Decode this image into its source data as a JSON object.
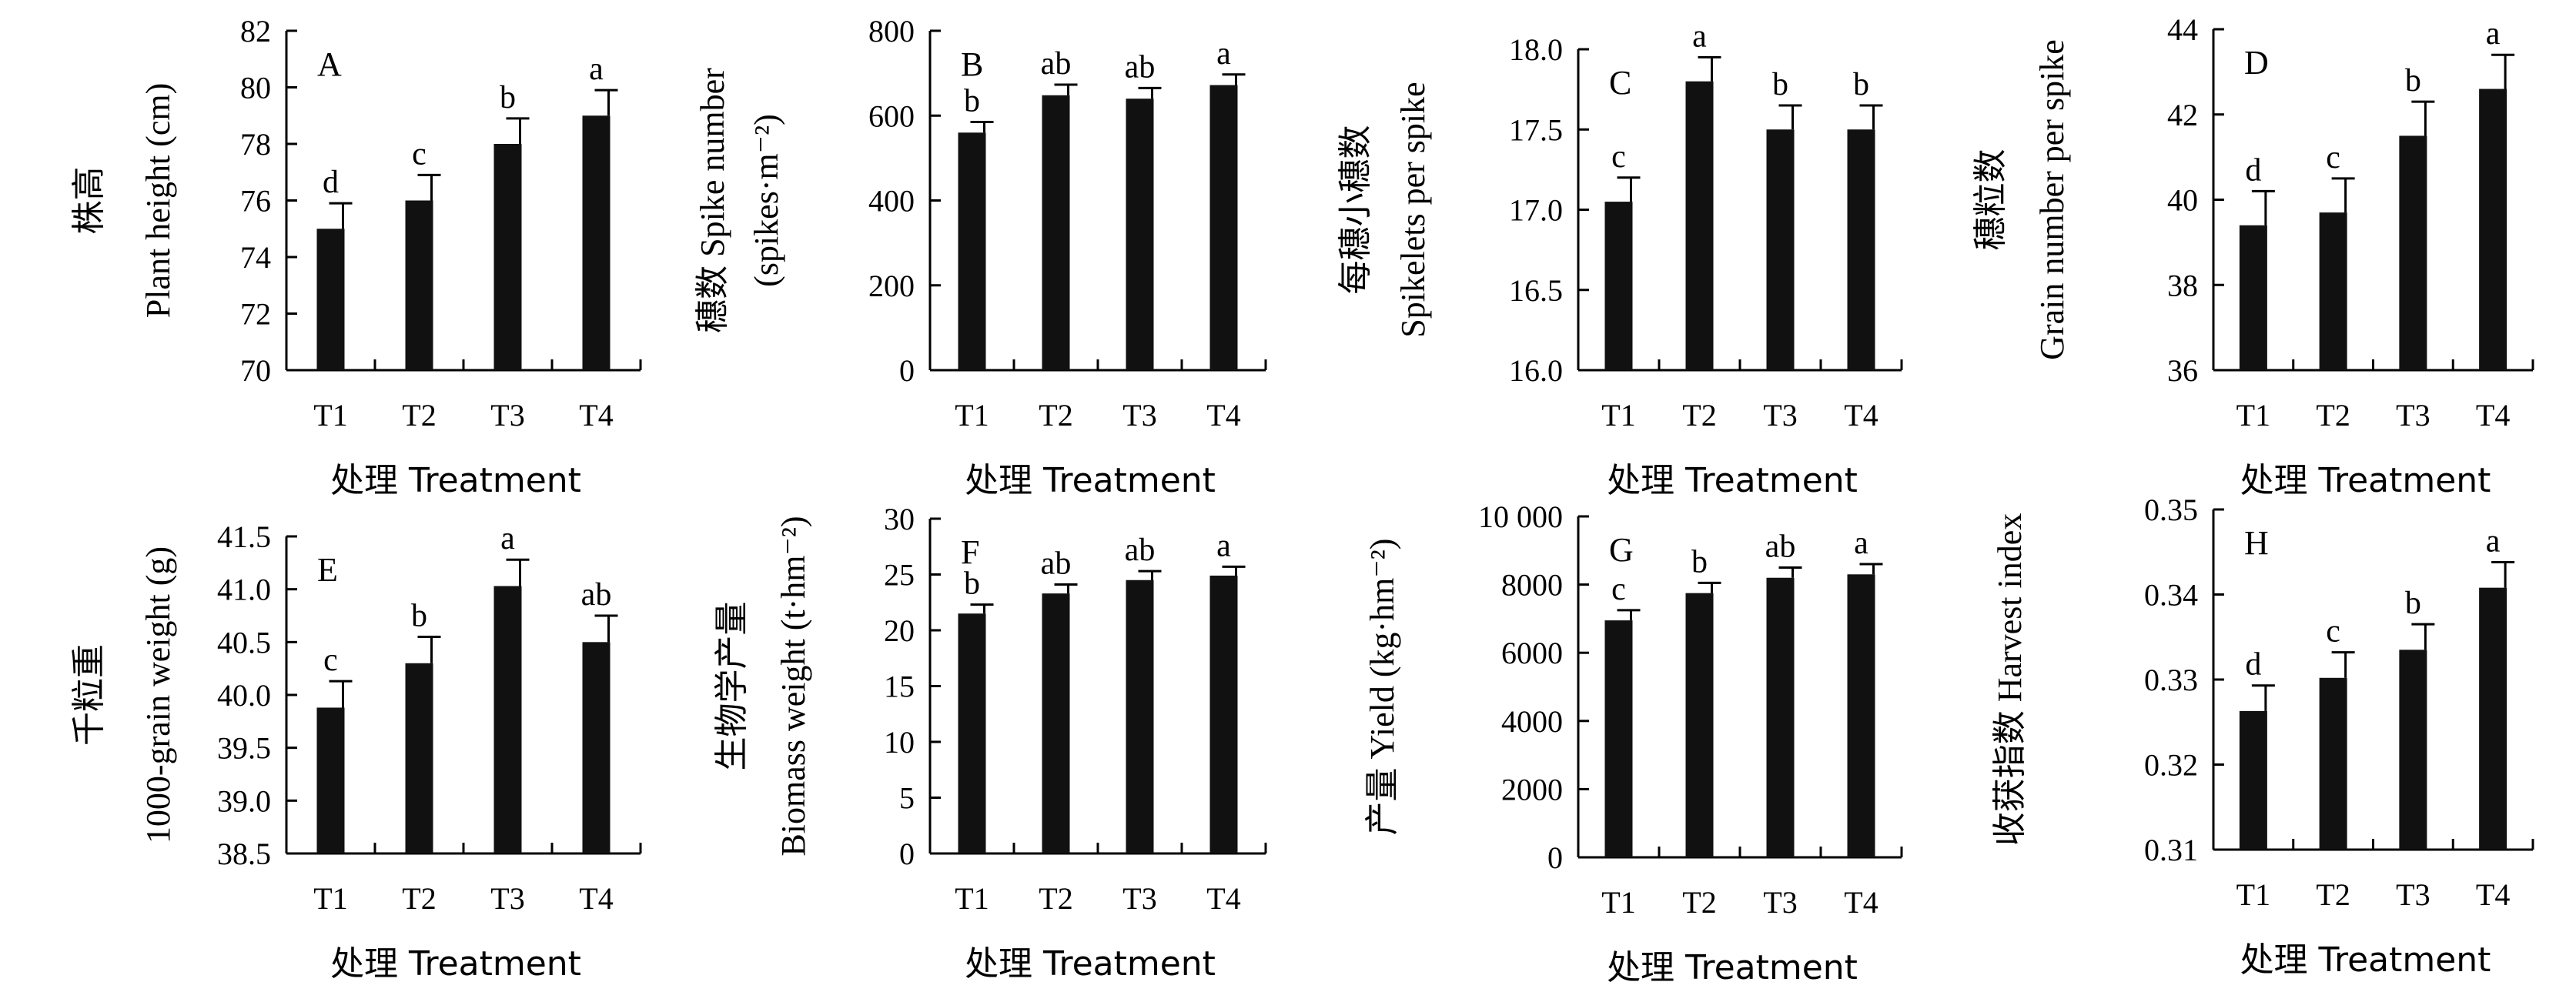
{
  "x_label": "处理 Treatment",
  "chart_data": [
    {
      "type": "bar",
      "panel": "A",
      "ylabel_zh": "株高",
      "ylabel_en": "Plant height (cm)",
      "categories": [
        "T1",
        "T2",
        "T3",
        "T4"
      ],
      "values": [
        75.0,
        76.0,
        78.0,
        79.0
      ],
      "errors": [
        0.9,
        0.9,
        0.9,
        0.9
      ],
      "significance": [
        "d",
        "c",
        "b",
        "a"
      ],
      "ylim": [
        70,
        82
      ],
      "yticks": [
        70,
        72,
        74,
        76,
        78,
        80,
        82
      ],
      "ytick_labels": [
        "70",
        "72",
        "74",
        "76",
        "78",
        "80",
        "82"
      ]
    },
    {
      "type": "bar",
      "panel": "B",
      "ylabel_zh": "穗数",
      "ylabel_en": "Spike number",
      "ylabel_unit": "(spikes·m⁻²)",
      "categories": [
        "T1",
        "T2",
        "T3",
        "T4"
      ],
      "values": [
        560,
        648,
        640,
        672
      ],
      "errors": [
        25,
        25,
        25,
        25
      ],
      "significance": [
        "b",
        "ab",
        "ab",
        "a"
      ],
      "ylim": [
        0,
        800
      ],
      "yticks": [
        0,
        200,
        400,
        600,
        800
      ],
      "ytick_labels": [
        "0",
        "200",
        "400",
        "600",
        "800"
      ]
    },
    {
      "type": "bar",
      "panel": "C",
      "ylabel_zh": "每穗小穗数",
      "ylabel_en": "Spikelets per spike",
      "categories": [
        "T1",
        "T2",
        "T3",
        "T4"
      ],
      "values": [
        17.05,
        17.8,
        17.5,
        17.5
      ],
      "errors": [
        0.15,
        0.15,
        0.15,
        0.15
      ],
      "significance": [
        "c",
        "a",
        "b",
        "b"
      ],
      "ylim": [
        16.0,
        18.0
      ],
      "yticks": [
        16.0,
        16.5,
        17.0,
        17.5,
        18.0
      ],
      "ytick_labels": [
        "16.0",
        "16.5",
        "17.0",
        "17.5",
        "18.0"
      ]
    },
    {
      "type": "bar",
      "panel": "D",
      "ylabel_zh": "穗粒数",
      "ylabel_en": "Grain number per spike",
      "categories": [
        "T1",
        "T2",
        "T3",
        "T4"
      ],
      "values": [
        39.4,
        39.7,
        41.5,
        42.6
      ],
      "errors": [
        0.8,
        0.8,
        0.8,
        0.8
      ],
      "significance": [
        "d",
        "c",
        "b",
        "a"
      ],
      "ylim": [
        36,
        44
      ],
      "yticks": [
        36,
        38,
        40,
        42,
        44
      ],
      "ytick_labels": [
        "36",
        "38",
        "40",
        "42",
        "44"
      ]
    },
    {
      "type": "bar",
      "panel": "E",
      "ylabel_zh": "千粒重",
      "ylabel_en": "1000-grain weight (g)",
      "categories": [
        "T1",
        "T2",
        "T3",
        "T4"
      ],
      "values": [
        39.88,
        40.3,
        41.03,
        40.5
      ],
      "errors": [
        0.25,
        0.25,
        0.25,
        0.25
      ],
      "significance": [
        "c",
        "b",
        "a",
        "ab"
      ],
      "ylim": [
        38.5,
        41.5
      ],
      "yticks": [
        38.5,
        39.0,
        39.5,
        40.0,
        40.5,
        41.0,
        41.5
      ],
      "ytick_labels": [
        "38.5",
        "39.0",
        "39.5",
        "40.0",
        "40.5",
        "41.0",
        "41.5"
      ]
    },
    {
      "type": "bar",
      "panel": "F",
      "ylabel_zh": "生物学产量",
      "ylabel_en": "Biomass weight (t·hm⁻²)",
      "categories": [
        "T1",
        "T2",
        "T3",
        "T4"
      ],
      "values": [
        21.5,
        23.3,
        24.5,
        24.9
      ],
      "errors": [
        0.8,
        0.8,
        0.8,
        0.8
      ],
      "significance": [
        "b",
        "ab",
        "ab",
        "a"
      ],
      "ylim": [
        0,
        30
      ],
      "yticks": [
        0,
        5,
        10,
        15,
        20,
        25,
        30
      ],
      "ytick_labels": [
        "0",
        "5",
        "10",
        "15",
        "20",
        "25",
        "30"
      ]
    },
    {
      "type": "bar",
      "panel": "G",
      "ylabel_zh": "产量",
      "ylabel_en": "Yield (kg·hm⁻²)",
      "categories": [
        "T1",
        "T2",
        "T3",
        "T4"
      ],
      "values": [
        6950,
        7750,
        8200,
        8300
      ],
      "errors": [
        300,
        300,
        300,
        300
      ],
      "significance": [
        "c",
        "b",
        "ab",
        "a"
      ],
      "ylim": [
        0,
        10000
      ],
      "yticks": [
        0,
        2000,
        4000,
        6000,
        8000,
        10000
      ],
      "ytick_labels": [
        "0",
        "2000",
        "4000",
        "6000",
        "8000",
        "10 000"
      ]
    },
    {
      "type": "bar",
      "panel": "H",
      "ylabel_zh": "收获指数",
      "ylabel_en": "Harvest index",
      "categories": [
        "T1",
        "T2",
        "T3",
        "T4"
      ],
      "values": [
        0.3263,
        0.3302,
        0.3335,
        0.3408
      ],
      "errors": [
        0.003,
        0.003,
        0.003,
        0.003
      ],
      "significance": [
        "d",
        "c",
        "b",
        "a"
      ],
      "ylim": [
        0.31,
        0.35
      ],
      "yticks": [
        0.31,
        0.32,
        0.33,
        0.34,
        0.35
      ],
      "ytick_labels": [
        "0.31",
        "0.32",
        "0.33",
        "0.34",
        "0.35"
      ]
    }
  ]
}
